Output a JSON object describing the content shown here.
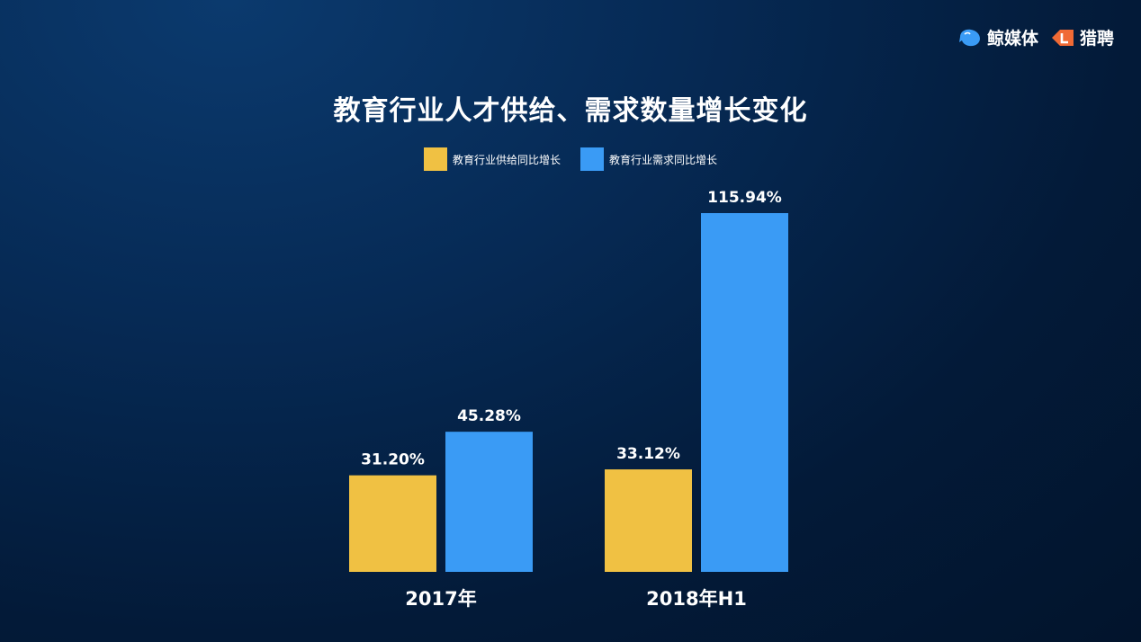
{
  "brand": {
    "left_name": "鲸媒体",
    "right_name": "猎聘",
    "left_icon": "whale-icon",
    "right_icon": "liepin-logo-icon"
  },
  "colors": {
    "supply": "#f0c143",
    "demand": "#3a9bf5"
  },
  "chart_data": {
    "type": "bar",
    "title": "教育行业人才供给、需求数量增长变化",
    "categories": [
      "2017年",
      "2018年H1"
    ],
    "series": [
      {
        "name": "教育行业供给同比增长",
        "values": [
          31.2,
          33.12
        ],
        "labels": [
          "31.20%",
          "33.12%"
        ]
      },
      {
        "name": "教育行业需求同比增长",
        "values": [
          45.28,
          115.94
        ],
        "labels": [
          "45.28%",
          "115.94%"
        ]
      }
    ],
    "ylim": [
      0,
      115.94
    ],
    "legend": "top-center",
    "grid": false,
    "xlabel": "",
    "ylabel": ""
  }
}
